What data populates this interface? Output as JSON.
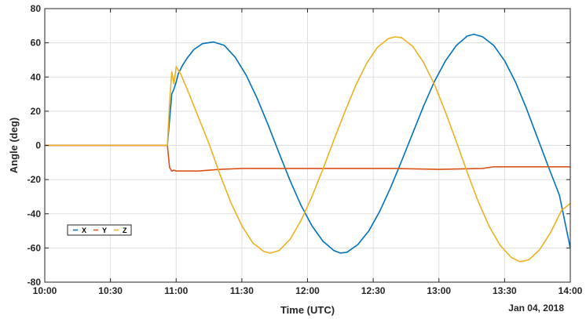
{
  "chart_data": {
    "type": "line",
    "xlabel": "Time (UTC)",
    "ylabel": "Angle (deg)",
    "date_label": "Jan 04, 2018",
    "x_unit": "time of day (HH:MM, UTC)",
    "xlim": [
      "10:00",
      "14:00"
    ],
    "ylim": [
      -80,
      80
    ],
    "x_ticks": [
      "10:00",
      "10:30",
      "11:00",
      "11:30",
      "12:00",
      "12:30",
      "13:00",
      "13:30",
      "14:00"
    ],
    "y_ticks": [
      80,
      60,
      40,
      20,
      0,
      -20,
      -40,
      -60,
      -80
    ],
    "grid": true,
    "legend_position": "lower-left",
    "legend": [
      "X",
      "Y",
      "Z"
    ],
    "series": [
      {
        "name": "X",
        "color": "#0072BD",
        "points": [
          [
            "10:00",
            0
          ],
          [
            "10:30",
            0
          ],
          [
            "10:55",
            0
          ],
          [
            "10:56",
            0
          ],
          [
            "10:57",
            15
          ],
          [
            "10:58",
            30
          ],
          [
            "10:59",
            33
          ],
          [
            "11:00",
            37
          ],
          [
            "11:01",
            42
          ],
          [
            "11:03",
            47
          ],
          [
            "11:05",
            51
          ],
          [
            "11:08",
            56
          ],
          [
            "11:12",
            59.5
          ],
          [
            "11:17",
            60.5
          ],
          [
            "11:22",
            58.5
          ],
          [
            "11:27",
            51.5
          ],
          [
            "11:32",
            41
          ],
          [
            "11:37",
            27.5
          ],
          [
            "11:42",
            12
          ],
          [
            "11:47",
            -4.5
          ],
          [
            "11:52",
            -20.5
          ],
          [
            "11:57",
            -35
          ],
          [
            "12:02",
            -47
          ],
          [
            "12:07",
            -56
          ],
          [
            "12:12",
            -61.5
          ],
          [
            "12:15",
            -63
          ],
          [
            "12:18",
            -62.5
          ],
          [
            "12:23",
            -58
          ],
          [
            "12:28",
            -50
          ],
          [
            "12:33",
            -38.5
          ],
          [
            "12:38",
            -24.5
          ],
          [
            "12:43",
            -9
          ],
          [
            "12:48",
            7
          ],
          [
            "12:53",
            23
          ],
          [
            "12:58",
            37.5
          ],
          [
            "13:03",
            49.5
          ],
          [
            "13:08",
            58.5
          ],
          [
            "13:13",
            64
          ],
          [
            "13:16",
            65
          ],
          [
            "13:20",
            63.5
          ],
          [
            "13:25",
            58.5
          ],
          [
            "13:30",
            49.5
          ],
          [
            "13:35",
            37
          ],
          [
            "13:40",
            21.5
          ],
          [
            "13:45",
            4.5
          ],
          [
            "13:50",
            -12.5
          ],
          [
            "13:55",
            -29
          ],
          [
            "14:00",
            -60
          ]
        ]
      },
      {
        "name": "Y",
        "color": "#D95319",
        "points": [
          [
            "10:00",
            0
          ],
          [
            "10:30",
            0
          ],
          [
            "10:56",
            0
          ],
          [
            "10:57",
            -13
          ],
          [
            "10:58",
            -15
          ],
          [
            "10:59",
            -14.5
          ],
          [
            "11:00",
            -15
          ],
          [
            "11:10",
            -15
          ],
          [
            "11:20",
            -14
          ],
          [
            "11:30",
            -13.5
          ],
          [
            "11:45",
            -13.5
          ],
          [
            "12:00",
            -13.5
          ],
          [
            "12:20",
            -13.5
          ],
          [
            "12:40",
            -13.5
          ],
          [
            "13:00",
            -14
          ],
          [
            "13:20",
            -13.5
          ],
          [
            "13:25",
            -12.5
          ],
          [
            "13:35",
            -12.5
          ],
          [
            "14:00",
            -12.5
          ]
        ]
      },
      {
        "name": "Z",
        "color": "#EDB120",
        "points": [
          [
            "10:00",
            0
          ],
          [
            "10:30",
            0
          ],
          [
            "10:55",
            0
          ],
          [
            "10:56",
            0
          ],
          [
            "10:57",
            25
          ],
          [
            "10:58",
            43
          ],
          [
            "10:59",
            36
          ],
          [
            "11:00",
            46
          ],
          [
            "11:02",
            42
          ],
          [
            "11:05",
            33
          ],
          [
            "11:10",
            17
          ],
          [
            "11:15",
            1
          ],
          [
            "11:20",
            -17
          ],
          [
            "11:25",
            -33.5
          ],
          [
            "11:30",
            -47
          ],
          [
            "11:35",
            -57
          ],
          [
            "11:40",
            -62
          ],
          [
            "11:43",
            -63
          ],
          [
            "11:47",
            -61.5
          ],
          [
            "11:52",
            -55
          ],
          [
            "11:57",
            -44
          ],
          [
            "12:02",
            -30
          ],
          [
            "12:07",
            -14
          ],
          [
            "12:12",
            3
          ],
          [
            "12:17",
            19.5
          ],
          [
            "12:22",
            35
          ],
          [
            "12:27",
            48
          ],
          [
            "12:32",
            57.5
          ],
          [
            "12:37",
            62.5
          ],
          [
            "12:40",
            63.5
          ],
          [
            "12:43",
            63
          ],
          [
            "12:48",
            58
          ],
          [
            "12:53",
            48.5
          ],
          [
            "12:58",
            35.5
          ],
          [
            "13:03",
            19.5
          ],
          [
            "13:08",
            2
          ],
          [
            "13:13",
            -16
          ],
          [
            "13:18",
            -33
          ],
          [
            "13:23",
            -47.5
          ],
          [
            "13:28",
            -58.5
          ],
          [
            "13:33",
            -65.5
          ],
          [
            "13:37",
            -68
          ],
          [
            "13:41",
            -67
          ],
          [
            "13:46",
            -61
          ],
          [
            "13:51",
            -51
          ],
          [
            "13:56",
            -38
          ],
          [
            "14:00",
            -34
          ]
        ]
      }
    ]
  }
}
